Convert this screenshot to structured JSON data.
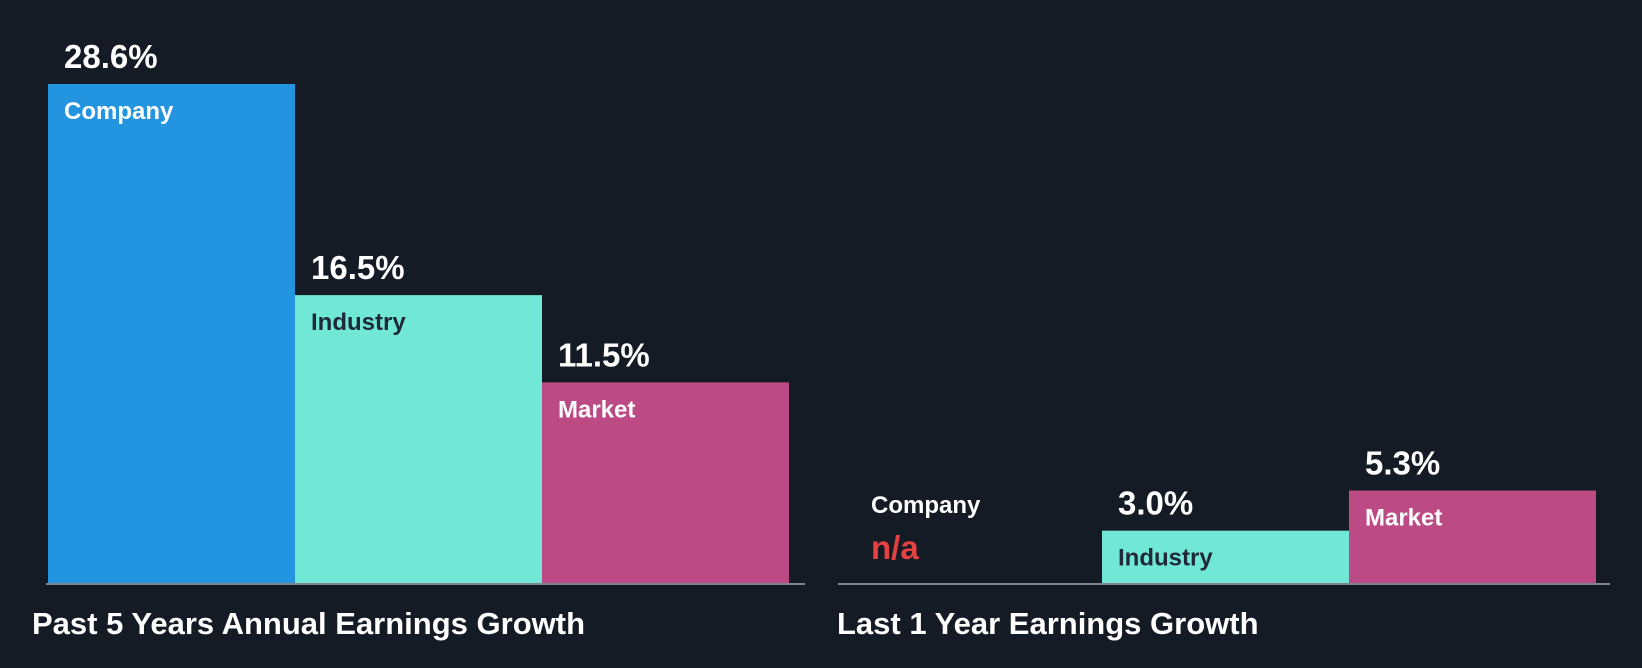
{
  "colors": {
    "background": "#151b24",
    "company": "#2394df",
    "industry": "#71e7d6",
    "market": "#bc4a85",
    "na": "#e64141",
    "axis": "#7f848a",
    "dark_text": "#1f2937"
  },
  "chart_data": [
    {
      "type": "bar",
      "title": "Past 5 Years Annual Earnings Growth",
      "categories": [
        "Company",
        "Industry",
        "Market"
      ],
      "values": [
        28.6,
        16.5,
        11.5
      ],
      "value_labels": [
        "28.6%",
        "16.5%",
        "11.5%"
      ],
      "ylim": [
        0,
        28.6
      ],
      "grid": false,
      "legend": "none"
    },
    {
      "type": "bar",
      "title": "Last 1 Year Earnings Growth",
      "categories": [
        "Company",
        "Industry",
        "Market"
      ],
      "values": [
        null,
        3.0,
        5.3
      ],
      "value_labels": [
        "n/a",
        "3.0%",
        "5.3%"
      ],
      "ylim": [
        0,
        28.6
      ],
      "grid": false,
      "legend": "none"
    }
  ]
}
